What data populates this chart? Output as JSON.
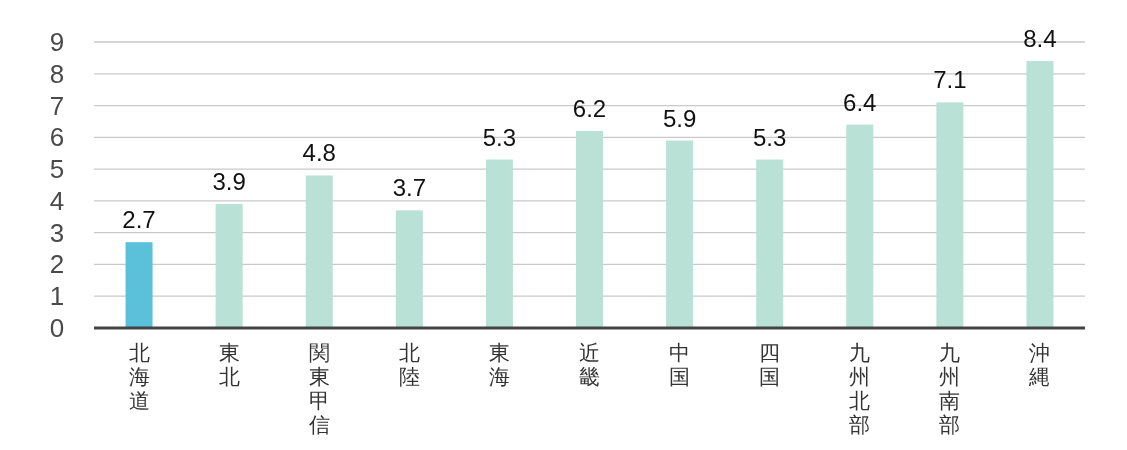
{
  "chart_data": {
    "type": "bar",
    "categories": [
      "北海道",
      "東北",
      "関東甲信",
      "北陸",
      "東海",
      "近畿",
      "中国",
      "四国",
      "九州北部",
      "九州南部",
      "沖縄"
    ],
    "values": [
      2.7,
      3.9,
      4.8,
      3.7,
      5.3,
      6.2,
      5.9,
      5.3,
      6.4,
      7.1,
      8.4
    ],
    "colors": [
      "#5bc1da",
      "#b9e1d5",
      "#b9e1d5",
      "#b9e1d5",
      "#b9e1d5",
      "#b9e1d5",
      "#b9e1d5",
      "#b9e1d5",
      "#b9e1d5",
      "#b9e1d5",
      "#b9e1d5"
    ],
    "ylim": [
      0,
      9
    ],
    "yticks": [
      0,
      1,
      2,
      3,
      4,
      5,
      6,
      7,
      8,
      9
    ],
    "grid": "y",
    "data_labels": true
  }
}
